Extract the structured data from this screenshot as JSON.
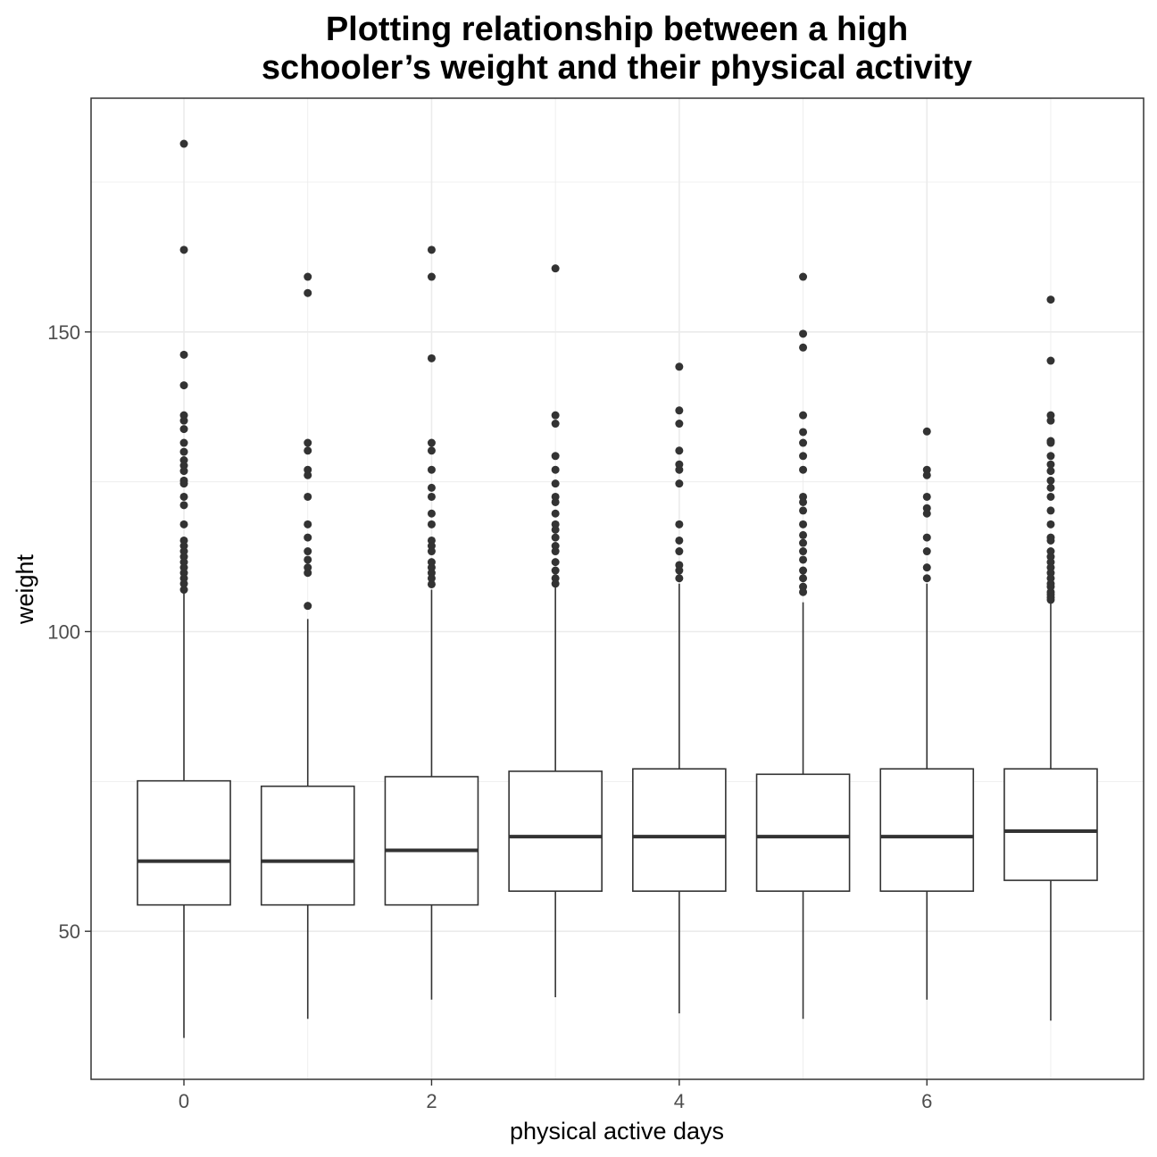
{
  "chart_data": {
    "type": "boxplot",
    "title": [
      "Plotting relationship between a high",
      "schooler’s weight and their physical activity"
    ],
    "xlabel": "physical active days",
    "ylabel": "weight",
    "xlim": [
      -0.75,
      7.75
    ],
    "ylim": [
      25.3,
      189
    ],
    "xticks": [
      0,
      2,
      4,
      6
    ],
    "yticks": [
      50,
      100,
      150
    ],
    "grid": true,
    "colors": {
      "box_line": "#333333",
      "grid": "#ebebeb",
      "panel_border": "#333333",
      "background": "#ffffff"
    },
    "boxes": [
      {
        "x": 0,
        "whisker_low": 32.2,
        "q1": 54.4,
        "median": 61.7,
        "q3": 75.1,
        "whisker_high": 106.6,
        "outliers": [
          181.4,
          163.7,
          146.2,
          141.1,
          136.1,
          135.2,
          133.8,
          131.5,
          130.0,
          128.6,
          127.7,
          126.8,
          125.2,
          124.7,
          122.5,
          121.1,
          117.9,
          115.2,
          114.3,
          113.4,
          112.5,
          111.6,
          110.7,
          109.8,
          108.9,
          108.0,
          107.0
        ]
      },
      {
        "x": 1,
        "whisker_low": 35.4,
        "q1": 54.4,
        "median": 61.7,
        "q3": 74.2,
        "whisker_high": 102.1,
        "outliers": [
          159.2,
          156.5,
          131.5,
          130.2,
          127.0,
          126.1,
          122.5,
          117.9,
          115.7,
          113.4,
          112.0,
          110.7,
          109.8,
          104.3
        ]
      },
      {
        "x": 2,
        "whisker_low": 38.6,
        "q1": 54.4,
        "median": 63.5,
        "q3": 75.8,
        "whisker_high": 107.0,
        "outliers": [
          163.7,
          159.2,
          145.6,
          131.5,
          130.2,
          127.0,
          124.0,
          122.5,
          119.7,
          117.9,
          115.2,
          114.3,
          113.4,
          111.6,
          110.7,
          109.8,
          108.9,
          107.9
        ]
      },
      {
        "x": 3,
        "whisker_low": 39.0,
        "q1": 56.7,
        "median": 65.8,
        "q3": 76.7,
        "whisker_high": 107.5,
        "outliers": [
          160.6,
          136.1,
          134.7,
          129.3,
          127.0,
          124.7,
          122.5,
          121.6,
          119.7,
          117.9,
          117.0,
          115.7,
          114.3,
          113.4,
          111.6,
          110.2,
          108.9,
          108.0
        ]
      },
      {
        "x": 4,
        "whisker_low": 36.3,
        "q1": 56.7,
        "median": 65.8,
        "q3": 77.1,
        "whisker_high": 108.0,
        "outliers": [
          144.2,
          136.9,
          134.7,
          130.2,
          127.9,
          127.0,
          124.7,
          117.9,
          115.2,
          113.4,
          111.1,
          110.2,
          108.9
        ]
      },
      {
        "x": 5,
        "whisker_low": 35.4,
        "q1": 56.7,
        "median": 65.8,
        "q3": 76.2,
        "whisker_high": 104.9,
        "outliers": [
          159.2,
          149.7,
          147.4,
          136.1,
          133.3,
          131.5,
          129.3,
          127.0,
          122.5,
          121.6,
          120.2,
          117.9,
          116.1,
          114.8,
          113.4,
          112.0,
          110.2,
          108.9,
          107.5,
          106.6
        ]
      },
      {
        "x": 6,
        "whisker_low": 38.6,
        "q1": 56.7,
        "median": 65.8,
        "q3": 77.1,
        "whisker_high": 108.0,
        "outliers": [
          133.4,
          127.0,
          126.1,
          122.5,
          120.6,
          119.7,
          115.7,
          113.4,
          110.7,
          108.9
        ]
      },
      {
        "x": 7,
        "whisker_low": 35.1,
        "q1": 58.5,
        "median": 66.7,
        "q3": 77.1,
        "whisker_high": 104.8,
        "outliers": [
          155.4,
          145.2,
          136.1,
          135.2,
          131.8,
          131.5,
          129.3,
          127.9,
          126.8,
          125.2,
          124.0,
          122.5,
          120.2,
          117.9,
          115.7,
          115.2,
          113.4,
          112.5,
          111.6,
          110.7,
          109.8,
          108.9,
          108.0,
          107.5,
          106.6,
          106.2,
          105.7,
          105.3
        ]
      }
    ]
  }
}
